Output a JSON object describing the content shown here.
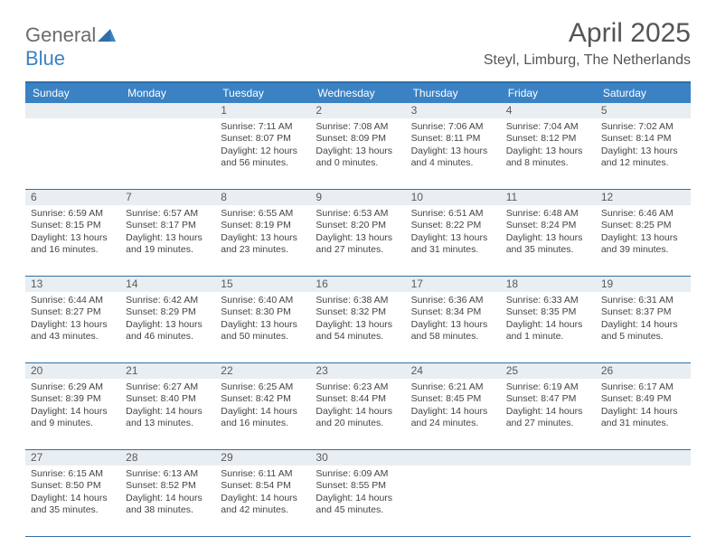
{
  "brand": {
    "text1": "General",
    "text2": "Blue"
  },
  "title": "April 2025",
  "location": "Steyl, Limburg, The Netherlands",
  "colors": {
    "header_bg": "#3b82c4",
    "header_text": "#ffffff",
    "daynum_bg": "#e9eef2",
    "rule": "#2f6fa8",
    "body_text": "#444444",
    "title_text": "#555555",
    "logo_gray": "#6b6b6b",
    "logo_blue": "#3b82c4",
    "page_bg": "#ffffff"
  },
  "typography": {
    "title_fontsize": 30,
    "location_fontsize": 16,
    "dow_fontsize": 12,
    "daynum_fontsize": 12,
    "cell_fontsize": 10.5
  },
  "days_of_week": [
    "Sunday",
    "Monday",
    "Tuesday",
    "Wednesday",
    "Thursday",
    "Friday",
    "Saturday"
  ],
  "weeks": [
    [
      null,
      null,
      {
        "n": "1",
        "sunrise": "7:11 AM",
        "sunset": "8:07 PM",
        "daylight": "12 hours and 56 minutes."
      },
      {
        "n": "2",
        "sunrise": "7:08 AM",
        "sunset": "8:09 PM",
        "daylight": "13 hours and 0 minutes."
      },
      {
        "n": "3",
        "sunrise": "7:06 AM",
        "sunset": "8:11 PM",
        "daylight": "13 hours and 4 minutes."
      },
      {
        "n": "4",
        "sunrise": "7:04 AM",
        "sunset": "8:12 PM",
        "daylight": "13 hours and 8 minutes."
      },
      {
        "n": "5",
        "sunrise": "7:02 AM",
        "sunset": "8:14 PM",
        "daylight": "13 hours and 12 minutes."
      }
    ],
    [
      {
        "n": "6",
        "sunrise": "6:59 AM",
        "sunset": "8:15 PM",
        "daylight": "13 hours and 16 minutes."
      },
      {
        "n": "7",
        "sunrise": "6:57 AM",
        "sunset": "8:17 PM",
        "daylight": "13 hours and 19 minutes."
      },
      {
        "n": "8",
        "sunrise": "6:55 AM",
        "sunset": "8:19 PM",
        "daylight": "13 hours and 23 minutes."
      },
      {
        "n": "9",
        "sunrise": "6:53 AM",
        "sunset": "8:20 PM",
        "daylight": "13 hours and 27 minutes."
      },
      {
        "n": "10",
        "sunrise": "6:51 AM",
        "sunset": "8:22 PM",
        "daylight": "13 hours and 31 minutes."
      },
      {
        "n": "11",
        "sunrise": "6:48 AM",
        "sunset": "8:24 PM",
        "daylight": "13 hours and 35 minutes."
      },
      {
        "n": "12",
        "sunrise": "6:46 AM",
        "sunset": "8:25 PM",
        "daylight": "13 hours and 39 minutes."
      }
    ],
    [
      {
        "n": "13",
        "sunrise": "6:44 AM",
        "sunset": "8:27 PM",
        "daylight": "13 hours and 43 minutes."
      },
      {
        "n": "14",
        "sunrise": "6:42 AM",
        "sunset": "8:29 PM",
        "daylight": "13 hours and 46 minutes."
      },
      {
        "n": "15",
        "sunrise": "6:40 AM",
        "sunset": "8:30 PM",
        "daylight": "13 hours and 50 minutes."
      },
      {
        "n": "16",
        "sunrise": "6:38 AM",
        "sunset": "8:32 PM",
        "daylight": "13 hours and 54 minutes."
      },
      {
        "n": "17",
        "sunrise": "6:36 AM",
        "sunset": "8:34 PM",
        "daylight": "13 hours and 58 minutes."
      },
      {
        "n": "18",
        "sunrise": "6:33 AM",
        "sunset": "8:35 PM",
        "daylight": "14 hours and 1 minute."
      },
      {
        "n": "19",
        "sunrise": "6:31 AM",
        "sunset": "8:37 PM",
        "daylight": "14 hours and 5 minutes."
      }
    ],
    [
      {
        "n": "20",
        "sunrise": "6:29 AM",
        "sunset": "8:39 PM",
        "daylight": "14 hours and 9 minutes."
      },
      {
        "n": "21",
        "sunrise": "6:27 AM",
        "sunset": "8:40 PM",
        "daylight": "14 hours and 13 minutes."
      },
      {
        "n": "22",
        "sunrise": "6:25 AM",
        "sunset": "8:42 PM",
        "daylight": "14 hours and 16 minutes."
      },
      {
        "n": "23",
        "sunrise": "6:23 AM",
        "sunset": "8:44 PM",
        "daylight": "14 hours and 20 minutes."
      },
      {
        "n": "24",
        "sunrise": "6:21 AM",
        "sunset": "8:45 PM",
        "daylight": "14 hours and 24 minutes."
      },
      {
        "n": "25",
        "sunrise": "6:19 AM",
        "sunset": "8:47 PM",
        "daylight": "14 hours and 27 minutes."
      },
      {
        "n": "26",
        "sunrise": "6:17 AM",
        "sunset": "8:49 PM",
        "daylight": "14 hours and 31 minutes."
      }
    ],
    [
      {
        "n": "27",
        "sunrise": "6:15 AM",
        "sunset": "8:50 PM",
        "daylight": "14 hours and 35 minutes."
      },
      {
        "n": "28",
        "sunrise": "6:13 AM",
        "sunset": "8:52 PM",
        "daylight": "14 hours and 38 minutes."
      },
      {
        "n": "29",
        "sunrise": "6:11 AM",
        "sunset": "8:54 PM",
        "daylight": "14 hours and 42 minutes."
      },
      {
        "n": "30",
        "sunrise": "6:09 AM",
        "sunset": "8:55 PM",
        "daylight": "14 hours and 45 minutes."
      },
      null,
      null,
      null
    ]
  ],
  "labels": {
    "sunrise": "Sunrise: ",
    "sunset": "Sunset: ",
    "daylight": "Daylight: "
  }
}
